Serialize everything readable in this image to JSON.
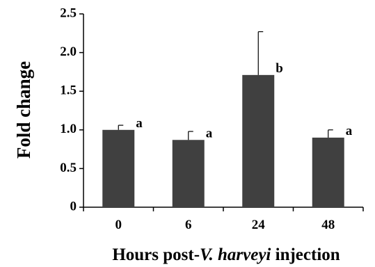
{
  "chart_data": {
    "type": "bar",
    "categories": [
      "0",
      "6",
      "24",
      "48"
    ],
    "values": [
      1.0,
      0.87,
      1.71,
      0.9
    ],
    "errors": [
      0.06,
      0.11,
      0.56,
      0.1
    ],
    "significance": [
      "a",
      "a",
      "b",
      "a"
    ],
    "ylabel": "Fold change",
    "xlabel": {
      "prefix": "Hours post-",
      "italic": "V. harveyi",
      "suffix": " injection"
    },
    "ylim": [
      0,
      2.5
    ],
    "yticks": [
      "0",
      "0.5",
      "1.0",
      "1.5",
      "2.0",
      "2.5"
    ],
    "bar_color": "#404040",
    "grid": false,
    "legend": "none"
  }
}
